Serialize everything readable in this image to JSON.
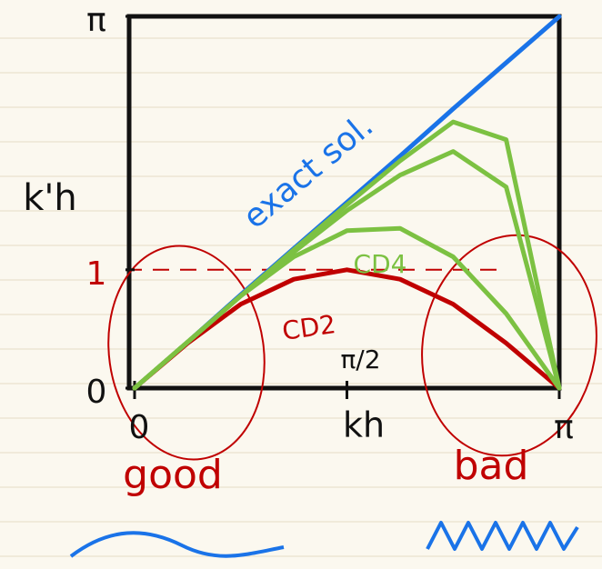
{
  "chart_data": {
    "type": "line",
    "x_label": "kh",
    "y_label": "k'h",
    "x": [
      0,
      0.3927,
      0.7854,
      1.1781,
      1.5708,
      1.9635,
      2.3562,
      2.7489,
      3.1416
    ],
    "series": [
      {
        "name": "exact sol.",
        "color": "#1a73e8",
        "values": [
          0,
          0.39,
          0.79,
          1.18,
          1.57,
          1.96,
          2.36,
          2.75,
          3.14
        ]
      },
      {
        "name": "CD2",
        "color": "#c00000",
        "values": [
          0,
          0.38,
          0.71,
          0.92,
          1,
          0.92,
          0.71,
          0.38,
          0
        ]
      },
      {
        "name": "CD4",
        "color": "#7cc142",
        "values": [
          0,
          0.39,
          0.78,
          1.11,
          1.33,
          1.35,
          1.11,
          0.63,
          0
        ]
      },
      {
        "color": "#7cc142",
        "values": [
          0,
          0.39,
          0.78,
          1.15,
          1.5,
          1.8,
          2,
          1.7,
          0
        ]
      },
      {
        "color": "#7cc142",
        "values": [
          0,
          0.39,
          0.78,
          1.17,
          1.55,
          1.92,
          2.25,
          2.1,
          0
        ]
      }
    ],
    "xlim": [
      0,
      3.1416
    ],
    "ylim": [
      0,
      3.1416
    ],
    "xticks": [
      0,
      {
        "value": 1.5708,
        "label": "π/2"
      },
      {
        "value": 3.1416,
        "label": "π"
      }
    ],
    "yticks": [
      0,
      1,
      {
        "value": 3.1416,
        "label": "π"
      }
    ],
    "reference_line": {
      "y": 1,
      "color": "#c00000"
    },
    "annotations": [
      "good",
      "bad"
    ]
  }
}
